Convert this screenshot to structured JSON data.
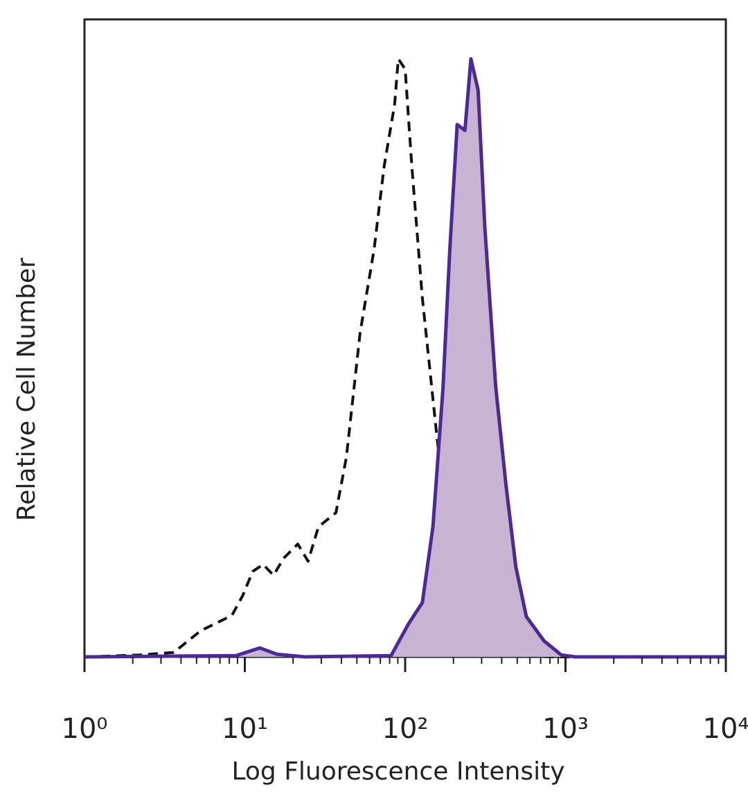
{
  "chart_data": {
    "type": "histogram-overlay",
    "x_label": "Log Fluorescence Intensity",
    "y_label": "Relative Cell Number",
    "xscale": "log",
    "xlim": [
      1,
      10000
    ],
    "ylim": [
      0,
      100
    ],
    "xticks": [
      {
        "value": 1,
        "label": "10⁰"
      },
      {
        "value": 10,
        "label": "10¹"
      },
      {
        "value": 100,
        "label": "10²"
      },
      {
        "value": 1000,
        "label": "10³"
      },
      {
        "value": 10000,
        "label": "10⁴"
      }
    ],
    "minor_xticks": [
      2,
      3,
      4,
      5,
      6,
      7,
      8,
      9,
      20,
      30,
      40,
      50,
      60,
      70,
      80,
      90,
      200,
      300,
      400,
      500,
      600,
      700,
      800,
      900,
      2000,
      3000,
      4000,
      5000,
      6000,
      7000,
      8000,
      9000
    ],
    "series": [
      {
        "style": "dashed",
        "color": "#111111",
        "x": [
          1,
          2.2,
          3.6,
          5.3,
          8.3,
          9.7,
          11.2,
          13,
          15.1,
          17.5,
          21.4,
          24.8,
          28.8,
          37,
          43,
          52.4,
          64,
          74,
          86,
          90.6,
          100,
          110,
          128,
          156,
          182,
          211,
          257,
          314,
          850,
          10000
        ],
        "values": [
          0,
          0.3,
          0.7,
          4.1,
          6.5,
          9.6,
          13.4,
          14.5,
          12.8,
          15.5,
          17.7,
          15,
          20.4,
          22.6,
          31.3,
          50.9,
          63.9,
          77,
          86.7,
          93.8,
          92.2,
          77,
          56.3,
          35.7,
          20.4,
          9.6,
          1.4,
          0.3,
          0,
          0
        ]
      },
      {
        "style": "filled",
        "color": "#4b2a96",
        "fill": "#c9b3d3",
        "x": [
          1,
          8.8,
          12.4,
          15.9,
          23.6,
          81.7,
          105,
          128,
          149,
          172,
          190,
          211,
          236,
          257,
          285,
          314,
          367,
          425,
          490,
          570,
          735,
          940,
          1150,
          10000
        ],
        "values": [
          0,
          0.2,
          1.4,
          0.4,
          0,
          0.2,
          5.2,
          8.5,
          20.4,
          42,
          64,
          83.5,
          82.6,
          93.8,
          88.9,
          67.4,
          42.4,
          27,
          14.1,
          6.3,
          2.5,
          0.3,
          0,
          0
        ]
      }
    ]
  }
}
